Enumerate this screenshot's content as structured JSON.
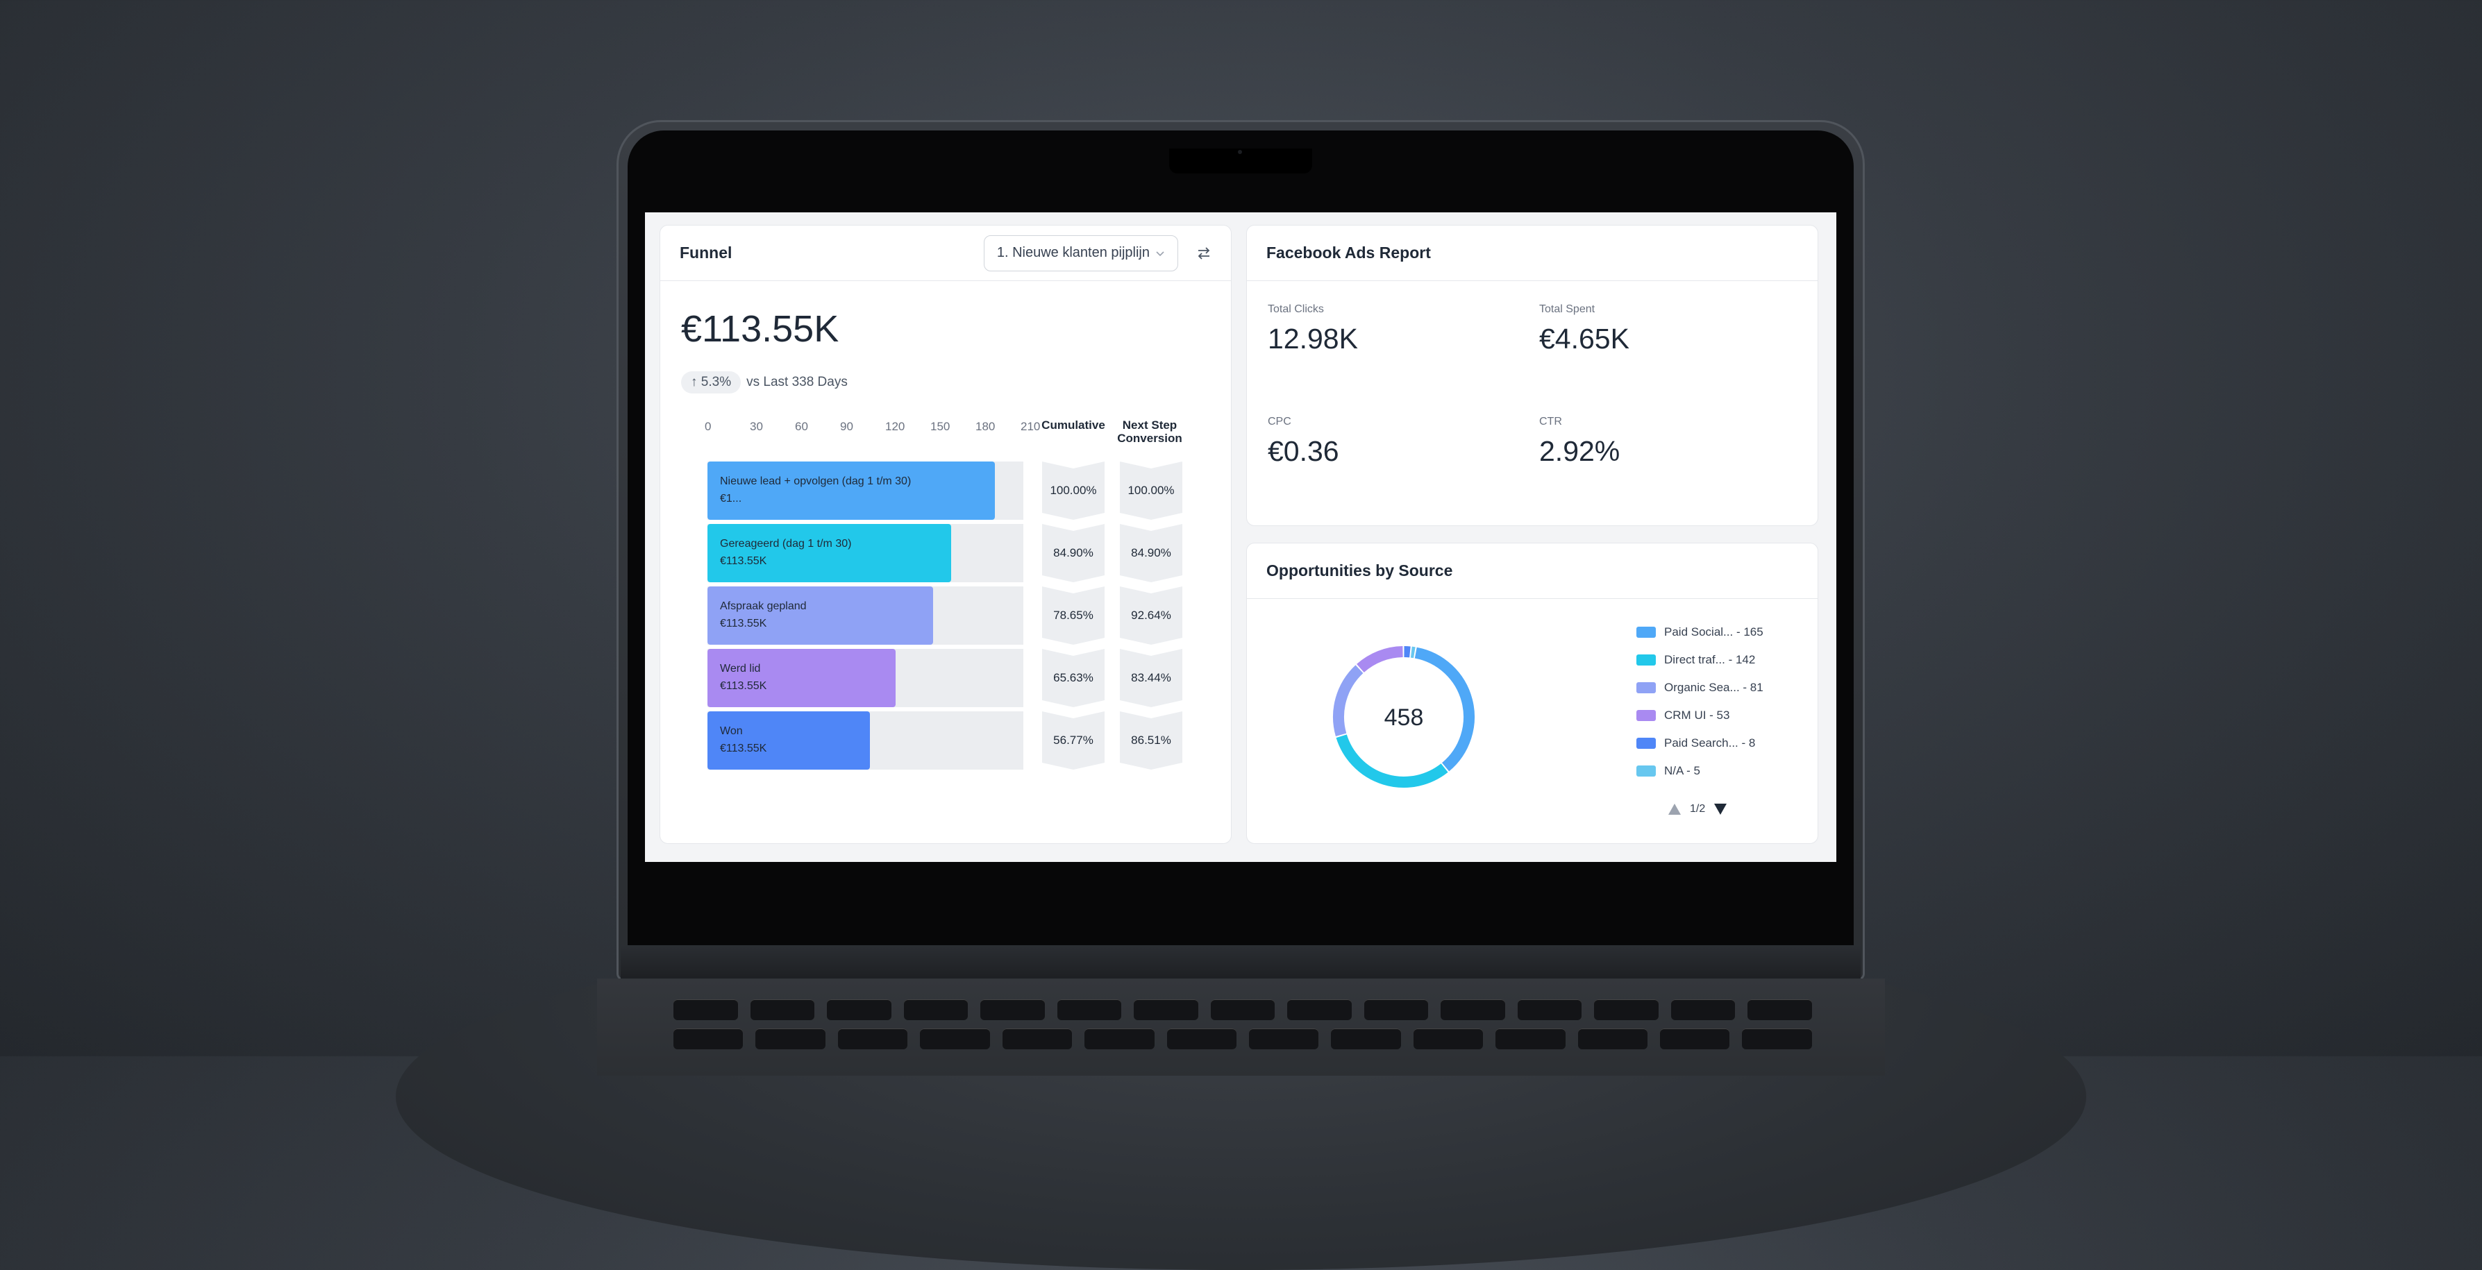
{
  "funnel": {
    "title": "Funnel",
    "pipeline": "1. Nieuwe klanten pijplijn",
    "total": "€113.55K",
    "change": "↑ 5.3%",
    "comparison": "vs Last 338 Days",
    "axis": [
      "0",
      "30",
      "60",
      "90",
      "120",
      "150",
      "180",
      "210"
    ],
    "cumulative_header": "Cumulative",
    "next_step_header_1": "Next Step",
    "next_step_header_2": "Conversion",
    "stages": [
      {
        "label": "Nieuwe lead + opvolgen (dag 1 t/m 30)",
        "value": "€1...",
        "count": 191,
        "cumulative": "100.00%",
        "next": "100.00%",
        "color": "#4fa8f7"
      },
      {
        "label": "Gereageerd (dag 1 t/m 30)",
        "value": "€113.55K",
        "count": 162,
        "cumulative": "84.90%",
        "next": "84.90%",
        "color": "#22c8ea"
      },
      {
        "label": "Afspraak gepland",
        "value": "€113.55K",
        "count": 150,
        "cumulative": "78.65%",
        "next": "92.64%",
        "color": "#8fa2f5"
      },
      {
        "label": "Werd lid",
        "value": "€113.55K",
        "count": 125,
        "cumulative": "65.63%",
        "next": "83.44%",
        "color": "#a98af1"
      },
      {
        "label": "Won",
        "value": "€113.55K",
        "count": 108,
        "cumulative": "56.77%",
        "next": "86.51%",
        "color": "#4f86f7"
      }
    ]
  },
  "facebook": {
    "title": "Facebook Ads Report",
    "total_clicks_label": "Total Clicks",
    "total_clicks": "12.98K",
    "total_spent_label": "Total Spent",
    "total_spent": "€4.65K",
    "cpc_label": "CPC",
    "cpc": "€0.36",
    "ctr_label": "CTR",
    "ctr": "2.92%"
  },
  "opportunities": {
    "title": "Opportunities by Source",
    "total": "458",
    "page": "1/2",
    "sources": [
      {
        "label": "Paid Social... - 165",
        "value": 165,
        "color": "#4fa8f7"
      },
      {
        "label": "Direct traf... - 142",
        "value": 142,
        "color": "#22c8ea"
      },
      {
        "label": "Organic Sea... - 81",
        "value": 81,
        "color": "#8fa2f5"
      },
      {
        "label": "CRM UI - 53",
        "value": 53,
        "color": "#a98af1"
      },
      {
        "label": "Paid Search... - 8",
        "value": 8,
        "color": "#4f86f7"
      },
      {
        "label": "N/A - 5",
        "value": 5,
        "color": "#67c7ef"
      }
    ]
  }
}
